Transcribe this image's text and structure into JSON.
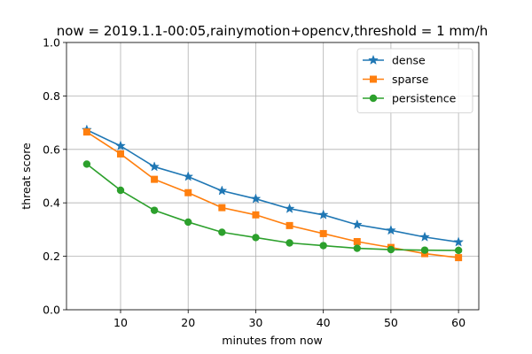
{
  "chart_data": {
    "type": "line",
    "title": "now = 2019.1.1-00:05,rainymotion+opencv,threshold = 1 mm/h",
    "xlabel": "minutes from now",
    "ylabel": "threat score",
    "xlim": [
      2,
      63
    ],
    "ylim": [
      0.0,
      1.0
    ],
    "xticks": [
      10,
      20,
      30,
      40,
      50,
      60
    ],
    "yticks": [
      0.0,
      0.2,
      0.4,
      0.6,
      0.8,
      1.0
    ],
    "grid": true,
    "legend_position": "top-right",
    "x": [
      5,
      10,
      15,
      20,
      25,
      30,
      35,
      40,
      45,
      50,
      55,
      60
    ],
    "series": [
      {
        "name": "dense",
        "color": "#1f77b4",
        "marker": "star",
        "values": [
          0.673,
          0.613,
          0.535,
          0.498,
          0.445,
          0.415,
          0.378,
          0.355,
          0.318,
          0.297,
          0.272,
          0.253
        ]
      },
      {
        "name": "sparse",
        "color": "#ff7f0e",
        "marker": "square",
        "values": [
          0.665,
          0.583,
          0.488,
          0.438,
          0.382,
          0.355,
          0.315,
          0.285,
          0.255,
          0.233,
          0.21,
          0.195
        ]
      },
      {
        "name": "persistence",
        "color": "#2ca02c",
        "marker": "circle",
        "values": [
          0.545,
          0.447,
          0.372,
          0.328,
          0.29,
          0.27,
          0.25,
          0.24,
          0.23,
          0.225,
          0.223,
          0.222
        ]
      }
    ]
  }
}
